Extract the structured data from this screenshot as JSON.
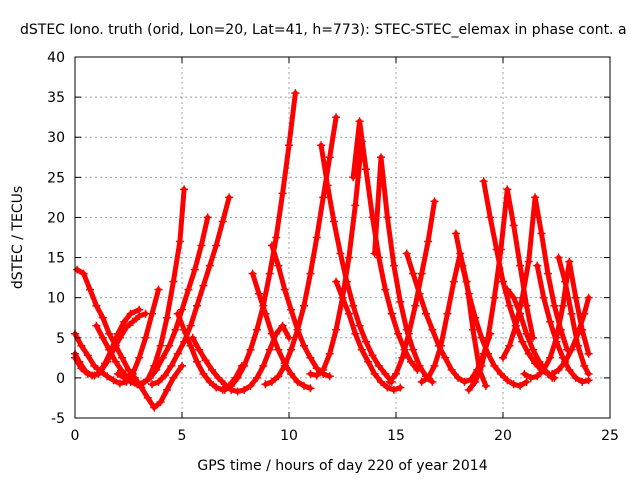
{
  "chart_data": {
    "type": "scatter",
    "title": "dSTEC Iono. truth (orid, Lon=20, Lat=41, h=773): STEC-STEC_elemax in phase cont. a",
    "xlabel": "GPS time / hours of day 220 of year 2014",
    "ylabel": "dSTEC  / TECUs",
    "xlim": [
      0,
      25
    ],
    "ylim": [
      -5,
      40
    ],
    "x_ticks": [
      0,
      5,
      10,
      15,
      20,
      25
    ],
    "y_ticks": [
      -5,
      0,
      5,
      10,
      15,
      20,
      25,
      30,
      35,
      40
    ],
    "x_tick_labels": [
      "0",
      "5",
      "10",
      "15",
      "20",
      "25"
    ],
    "y_tick_labels": [
      "-5",
      "0",
      "5",
      "10",
      "15",
      "20",
      "25",
      "30",
      "35",
      "40"
    ],
    "grid": true,
    "marker": "+",
    "colors": {
      "series": "#ff0000",
      "grid": "#a0a0a0",
      "axis": "#000000"
    },
    "series": [
      {
        "x": [
          0.0,
          0.3,
          0.6,
          0.9,
          1.2,
          1.5,
          1.8,
          2.1,
          2.4,
          2.7,
          3.0,
          3.3
        ],
        "values": [
          2.5,
          1.2,
          0.5,
          0.3,
          0.8,
          2.0,
          3.5,
          5.0,
          6.3,
          7.0,
          7.7,
          8.0
        ]
      },
      {
        "x": [
          0.1,
          0.4,
          0.7,
          1.0,
          1.3,
          1.6,
          1.9,
          2.2,
          2.5,
          2.8,
          3.1,
          3.4,
          3.7,
          4.0,
          4.3,
          4.6,
          5.0
        ],
        "values": [
          13.5,
          13.0,
          11.0,
          9.0,
          7.5,
          5.5,
          4.0,
          2.5,
          1.0,
          0.0,
          -1.2,
          -2.5,
          -3.7,
          -3.0,
          -1.5,
          0.0,
          1.5
        ]
      },
      {
        "x": [
          0.0,
          0.3,
          0.6,
          0.9,
          1.2,
          1.5,
          1.8,
          2.1,
          2.4,
          2.7,
          3.0,
          3.3,
          3.6,
          3.9
        ],
        "values": [
          5.5,
          4.0,
          2.8,
          1.5,
          0.8,
          0.2,
          -0.3,
          -0.7,
          -0.5,
          0.5,
          2.5,
          5.0,
          8.0,
          11.0
        ]
      },
      {
        "x": [
          0.0,
          0.2,
          0.5,
          0.8,
          1.1,
          1.4,
          1.7,
          2.0,
          2.3,
          2.6,
          3.0
        ],
        "values": [
          3.0,
          2.0,
          0.8,
          0.3,
          0.5,
          1.8,
          3.5,
          5.5,
          7.0,
          8.0,
          8.5
        ]
      },
      {
        "x": [
          1.0,
          1.3,
          1.6,
          1.9,
          2.2,
          2.5,
          2.8,
          3.1,
          3.4,
          3.7,
          4.0,
          4.3,
          4.6,
          4.9,
          5.1
        ],
        "values": [
          6.5,
          5.0,
          3.5,
          2.0,
          0.8,
          0.0,
          -0.6,
          -0.8,
          -0.2,
          1.5,
          4.0,
          7.5,
          12.0,
          17.0,
          23.5
        ]
      },
      {
        "x": [
          2.0,
          2.3,
          2.6,
          2.9,
          3.2,
          3.5,
          3.8,
          4.1,
          4.4,
          4.7,
          5.0,
          5.3,
          5.6,
          5.9,
          6.2
        ],
        "values": [
          0.5,
          0.0,
          -0.5,
          -0.8,
          -0.6,
          0.0,
          1.0,
          2.5,
          4.0,
          6.0,
          8.5,
          11.0,
          13.5,
          16.5,
          20.0
        ]
      },
      {
        "x": [
          4.8,
          5.1,
          5.4,
          5.7,
          6.0,
          6.3,
          6.6,
          6.9,
          7.2,
          7.5,
          7.8
        ],
        "values": [
          8.0,
          6.0,
          4.0,
          2.0,
          0.5,
          -0.5,
          -1.2,
          -1.5,
          -1.0,
          0.0,
          1.5
        ]
      },
      {
        "x": [
          3.6,
          3.9,
          4.2,
          4.5,
          4.8,
          5.1,
          5.4,
          5.7,
          6.0,
          6.3,
          6.6,
          6.9,
          7.2
        ],
        "values": [
          -0.8,
          -0.5,
          0.3,
          1.5,
          3.0,
          4.5,
          6.5,
          9.0,
          11.5,
          14.0,
          16.5,
          19.5,
          22.5
        ]
      },
      {
        "x": [
          5.5,
          5.8,
          6.1,
          6.4,
          6.7,
          7.0,
          7.3,
          7.6,
          7.9,
          8.2,
          8.5,
          8.8,
          9.1,
          9.4,
          9.7,
          10.0
        ],
        "values": [
          5.0,
          3.5,
          2.2,
          1.0,
          0.0,
          -0.8,
          -1.5,
          -1.7,
          -1.5,
          -1.0,
          0.0,
          1.5,
          3.5,
          5.5,
          6.5,
          5.0
        ]
      },
      {
        "x": [
          8.3,
          8.6,
          8.9,
          9.2,
          9.5,
          9.8,
          10.1,
          10.4,
          10.7,
          11.0
        ],
        "values": [
          13.0,
          10.5,
          8.0,
          5.5,
          3.5,
          1.8,
          0.5,
          -0.5,
          -1.0,
          -1.3
        ]
      },
      {
        "x": [
          7.0,
          7.3,
          7.6,
          7.9,
          8.2,
          8.5,
          8.8,
          9.1,
          9.4,
          9.7,
          10.0,
          10.3
        ],
        "values": [
          -1.5,
          -1.0,
          0.0,
          1.5,
          3.5,
          6.0,
          9.0,
          13.0,
          17.5,
          23.0,
          29.0,
          35.5
        ]
      },
      {
        "x": [
          9.2,
          9.5,
          9.8,
          10.1,
          10.4,
          10.7,
          11.0,
          11.3,
          11.6,
          11.9
        ],
        "values": [
          16.5,
          14.0,
          11.0,
          8.5,
          6.0,
          4.0,
          2.5,
          1.2,
          0.5,
          0.2
        ]
      },
      {
        "x": [
          8.9,
          9.2,
          9.5,
          9.8,
          10.1,
          10.4,
          10.7,
          11.0,
          11.3,
          11.6,
          11.9,
          12.2
        ],
        "values": [
          -0.8,
          -0.5,
          0.2,
          1.5,
          3.5,
          6.0,
          9.0,
          13.0,
          17.5,
          22.5,
          27.5,
          32.5
        ]
      },
      {
        "x": [
          11.5,
          11.8,
          12.1,
          12.4,
          12.7,
          13.0,
          13.3,
          13.6,
          13.9,
          14.2,
          14.5,
          14.8
        ],
        "values": [
          29.0,
          24.0,
          19.5,
          15.5,
          12.0,
          9.0,
          6.5,
          4.5,
          2.8,
          1.5,
          0.5,
          -0.5
        ]
      },
      {
        "x": [
          11.0,
          11.3,
          11.6,
          11.9,
          12.2,
          12.5,
          12.8,
          13.1,
          13.4
        ],
        "values": [
          0.5,
          0.3,
          1.0,
          3.0,
          6.0,
          10.0,
          15.0,
          21.5,
          29.5
        ]
      },
      {
        "x": [
          12.2,
          12.5,
          12.8,
          13.1,
          13.4,
          13.7,
          14.0,
          14.3,
          14.6,
          14.9,
          15.2
        ],
        "values": [
          12.0,
          10.0,
          8.0,
          5.5,
          3.5,
          2.0,
          0.5,
          -0.5,
          -1.2,
          -1.5,
          -1.2
        ]
      },
      {
        "x": [
          13.0,
          13.3,
          13.6,
          13.9,
          14.2,
          14.5,
          14.8,
          15.1,
          15.4,
          15.7,
          16.0
        ],
        "values": [
          25.0,
          32.0,
          26.0,
          20.0,
          15.0,
          11.0,
          8.0,
          5.5,
          3.5,
          2.0,
          1.0
        ]
      },
      {
        "x": [
          14.0,
          14.3,
          14.6,
          14.9,
          15.2,
          15.5,
          15.8,
          16.1,
          16.4,
          16.7
        ],
        "values": [
          15.5,
          27.5,
          20.0,
          14.0,
          9.5,
          6.0,
          3.5,
          1.5,
          0.2,
          -0.5
        ]
      },
      {
        "x": [
          15.5,
          15.8,
          16.1,
          16.4,
          16.7,
          17.0,
          17.3,
          17.6,
          17.9,
          18.2,
          18.5,
          18.8,
          19.1,
          19.4
        ],
        "values": [
          15.5,
          13.0,
          10.5,
          8.0,
          6.0,
          4.0,
          2.5,
          1.0,
          0.0,
          -0.5,
          -0.2,
          1.0,
          3.0,
          5.5
        ]
      },
      {
        "x": [
          14.7,
          15.0,
          15.3,
          15.6,
          15.9,
          16.2,
          16.5,
          16.8
        ],
        "values": [
          -0.5,
          0.5,
          2.5,
          5.5,
          9.0,
          13.0,
          17.0,
          22.0
        ]
      },
      {
        "x": [
          16.2,
          16.5,
          16.8,
          17.1,
          17.4,
          17.7,
          18.0,
          18.3,
          18.6,
          18.9,
          19.2
        ],
        "values": [
          -0.5,
          0.0,
          1.5,
          4.0,
          8.0,
          12.0,
          15.5,
          12.0,
          6.0,
          1.0,
          -1.0
        ]
      },
      {
        "x": [
          17.8,
          18.1,
          18.4,
          18.7,
          19.0,
          19.3,
          19.6,
          19.9,
          20.2,
          20.5,
          20.8,
          21.1
        ],
        "values": [
          18.0,
          14.0,
          10.5,
          7.5,
          5.0,
          3.0,
          1.5,
          0.5,
          -0.3,
          -0.8,
          -1.0,
          -0.5
        ]
      },
      {
        "x": [
          18.4,
          18.7,
          19.0,
          19.3,
          19.6,
          19.9,
          20.2,
          20.5,
          20.8,
          21.1,
          21.4
        ],
        "values": [
          -1.5,
          -0.5,
          1.5,
          5.0,
          10.0,
          16.0,
          23.5,
          19.0,
          14.0,
          9.0,
          5.0
        ]
      },
      {
        "x": [
          19.1,
          19.4,
          19.7,
          20.0,
          20.3,
          20.6,
          20.9,
          21.2,
          21.5,
          21.8,
          22.1,
          22.4
        ],
        "values": [
          24.5,
          20.0,
          16.0,
          12.0,
          9.0,
          6.5,
          4.5,
          3.0,
          1.8,
          1.0,
          0.5,
          0.0
        ]
      },
      {
        "x": [
          20.2,
          20.5,
          20.8,
          21.1,
          21.4,
          21.7,
          22.0,
          22.3
        ],
        "values": [
          11.0,
          10.0,
          8.0,
          5.5,
          3.5,
          2.0,
          0.8,
          0.0
        ]
      },
      {
        "x": [
          20.0,
          20.3,
          20.6,
          20.9,
          21.2,
          21.5,
          21.8,
          22.1,
          22.4,
          22.7,
          23.0
        ],
        "values": [
          2.5,
          4.0,
          6.5,
          10.0,
          14.5,
          22.5,
          18.0,
          13.0,
          9.0,
          6.0,
          3.5
        ]
      },
      {
        "x": [
          21.6,
          21.9,
          22.2,
          22.5,
          22.8,
          23.1,
          23.4,
          23.7,
          24.0
        ],
        "values": [
          14.0,
          10.0,
          7.0,
          4.5,
          2.5,
          1.0,
          0.0,
          -0.5,
          -0.3
        ]
      },
      {
        "x": [
          21.0,
          21.3,
          21.6,
          21.9,
          22.2,
          22.5,
          22.8,
          23.1,
          23.4,
          23.7,
          24.0
        ],
        "values": [
          0.5,
          0.0,
          0.2,
          1.0,
          2.5,
          5.0,
          9.0,
          14.5,
          10.0,
          6.0,
          3.0
        ]
      },
      {
        "x": [
          22.6,
          22.9,
          23.2,
          23.5,
          23.8,
          24.0
        ],
        "values": [
          15.0,
          12.0,
          8.0,
          4.0,
          1.5,
          0.5
        ]
      },
      {
        "x": [
          22.3,
          22.6,
          22.9,
          23.2,
          23.5,
          23.8,
          24.0
        ],
        "values": [
          0.5,
          1.0,
          2.0,
          3.5,
          5.5,
          8.0,
          10.0
        ]
      }
    ]
  }
}
